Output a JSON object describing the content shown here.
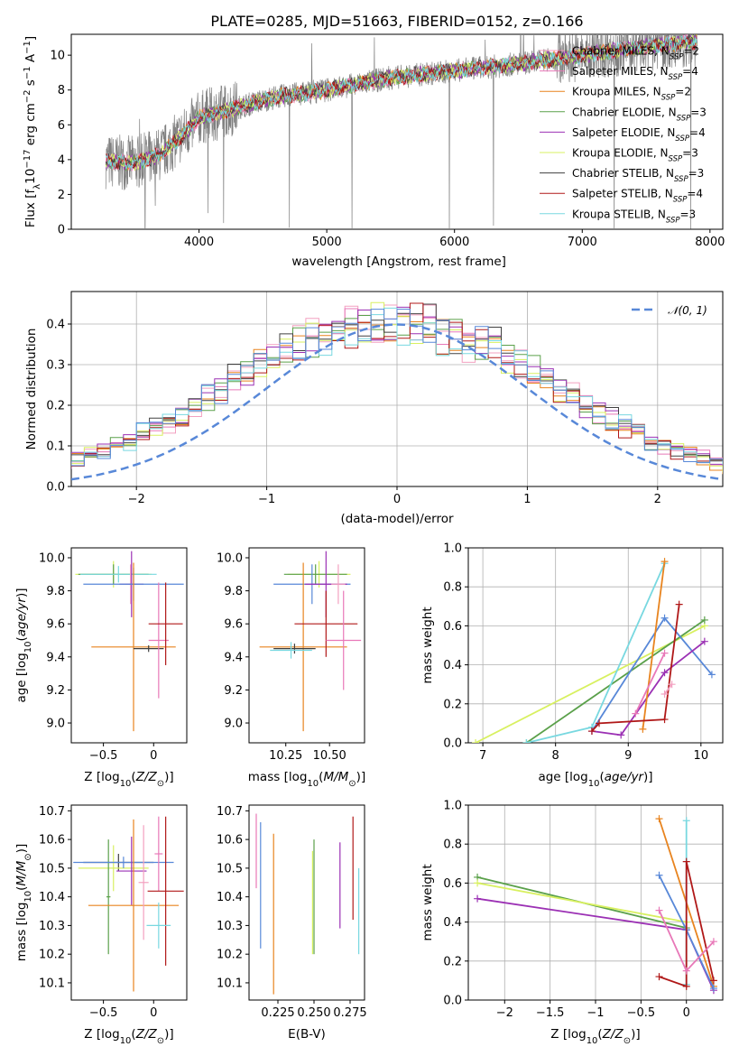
{
  "title": "PLATE=0285, MJD=51663, FIBERID=0152, z=0.166",
  "colors": {
    "Chabrier MILES": "#f3a0c0",
    "Salpeter MILES": "#e878b8",
    "Kroupa MILES": "#e8841f",
    "Chabrier ELODIE": "#5aa04a",
    "Salpeter ELODIE": "#9b30b4",
    "Kroupa ELODIE": "#d8f060",
    "Chabrier STELIB": "#404040",
    "Salpeter STELIB": "#b01818",
    "Kroupa STELIB": "#78d8e0",
    "data": "#808080",
    "extra": "#5888d8",
    "gauss": "#5888d8"
  },
  "models": [
    "Chabrier MILES",
    "Salpeter MILES",
    "Kroupa MILES",
    "Chabrier ELODIE",
    "Salpeter ELODIE",
    "Kroupa ELODIE",
    "Chabrier STELIB",
    "Salpeter STELIB",
    "Kroupa STELIB"
  ],
  "chart_data": [
    {
      "type": "line",
      "title": "PLATE=0285, MJD=51663, FIBERID=0152, z=0.166",
      "xlabel": "wavelength [Angstrom, rest frame]",
      "ylabel": "Flux [fλ10⁻¹⁷ erg cm⁻² s⁻¹ A⁻¹]",
      "xlim": [
        3000,
        8100
      ],
      "ylim": [
        0,
        11.2
      ],
      "xticks": [
        4000,
        5000,
        6000,
        7000,
        8000
      ],
      "yticks": [
        0,
        2,
        4,
        6,
        8,
        10
      ],
      "legend_position": "top-right",
      "legend": [
        "Chabrier MILES, N_SSP=2",
        "Salpeter MILES, N_SSP=4",
        "Kroupa MILES, N_SSP=2",
        "Chabrier ELODIE, N_SSP=3",
        "Salpeter ELODIE, N_SSP=4",
        "Kroupa ELODIE, N_SSP=3",
        "Chabrier STELIB, N_SSP=3",
        "Salpeter STELIB, N_SSP=4",
        "Kroupa STELIB, N_SSP=3"
      ],
      "legend_text": [
        {
          "name": "Chabrier MILES, N",
          "sub": "SSP",
          "rest": "=2"
        },
        {
          "name": "Salpeter MILES, N",
          "sub": "SSP",
          "rest": "=4"
        },
        {
          "name": "Kroupa MILES, N",
          "sub": "SSP",
          "rest": "=2"
        },
        {
          "name": "Chabrier ELODIE, N",
          "sub": "SSP",
          "rest": "=3"
        },
        {
          "name": "Salpeter ELODIE, N",
          "sub": "SSP",
          "rest": "=4"
        },
        {
          "name": "Kroupa ELODIE, N",
          "sub": "SSP",
          "rest": "=3"
        },
        {
          "name": "Chabrier STELIB, N",
          "sub": "SSP",
          "rest": "=3"
        },
        {
          "name": "Salpeter STELIB, N",
          "sub": "SSP",
          "rest": "=4"
        },
        {
          "name": "Kroupa STELIB, N",
          "sub": "SSP",
          "rest": "=3"
        }
      ],
      "continuum": {
        "x": [
          3270,
          3500,
          3700,
          3900,
          4000,
          4300,
          4600,
          5000,
          5500,
          6000,
          6500,
          7000,
          7500,
          7900
        ],
        "y": [
          3.9,
          3.8,
          4.3,
          5.6,
          6.4,
          7.0,
          7.6,
          8.0,
          8.7,
          9.1,
          9.5,
          10.0,
          10.5,
          10.8
        ]
      }
    },
    {
      "type": "histogram",
      "xlabel": "(data-model)/error",
      "ylabel": "Normed distribution",
      "xlim": [
        -2.5,
        2.5
      ],
      "ylim": [
        0,
        0.48
      ],
      "xticks": [
        -2,
        -1,
        0,
        1,
        2
      ],
      "yticks": [
        0.0,
        0.1,
        0.2,
        0.3,
        0.4
      ],
      "bin_width": 0.1,
      "legend_position": "top-right",
      "legend_label": "𝒩(0, 1)",
      "gaussian": {
        "mean": 0,
        "sigma": 1
      },
      "envelope": [
        0.03,
        0.035,
        0.04,
        0.045,
        0.05,
        0.06,
        0.07,
        0.08,
        0.09,
        0.1,
        0.11,
        0.13,
        0.15,
        0.16,
        0.18,
        0.2,
        0.22,
        0.24,
        0.26,
        0.28,
        0.3,
        0.32,
        0.34,
        0.35,
        0.36,
        0.37,
        0.38,
        0.39,
        0.39,
        0.4,
        0.4,
        0.4,
        0.39,
        0.39,
        0.38,
        0.37,
        0.36,
        0.35,
        0.34,
        0.32,
        0.3,
        0.28,
        0.26,
        0.24,
        0.22,
        0.2,
        0.18,
        0.16,
        0.15,
        0.13,
        0.11,
        0.1,
        0.09,
        0.08,
        0.07,
        0.06,
        0.05,
        0.045,
        0.04,
        0.035,
        0.03,
        0.025,
        0.02
      ]
    },
    {
      "type": "errorbar",
      "xlabel": "Z [log10(Z/Z⊙)]",
      "ylabel": "age  [log10(age/yr)]",
      "xlim": [
        -0.82,
        0.33
      ],
      "ylim": [
        8.88,
        10.06
      ],
      "xticks": [
        -0.5,
        0.0
      ],
      "yticks": [
        9.0,
        9.2,
        9.4,
        9.6,
        9.8,
        10.0
      ],
      "points": [
        {
          "model": "Kroupa ELODIE",
          "x": -0.4,
          "xerr": 0.38,
          "y": 9.9,
          "yerr": 0.08
        },
        {
          "model": "Chabrier ELODIE",
          "x": -0.4,
          "xerr": 0.35,
          "y": 9.9,
          "yerr": 0.06
        },
        {
          "model": "Kroupa STELIB",
          "x": -0.35,
          "xerr": 0.38,
          "y": 9.9,
          "yerr": 0.05
        },
        {
          "model": "Chabrier MILES",
          "x": -0.23,
          "xerr": 0.05,
          "y": 9.84,
          "yerr": 0.12
        },
        {
          "model": "Salpeter ELODIE",
          "x": -0.22,
          "xerr": 0.12,
          "y": 9.84,
          "yerr": 0.2
        },
        {
          "model": "extra",
          "x": -0.2,
          "xerr": 0.5,
          "y": 9.84,
          "yerr": 0.1
        },
        {
          "model": "Kroupa MILES",
          "x": -0.2,
          "xerr": 0.42,
          "y": 9.46,
          "yerr": 0.51
        },
        {
          "model": "Chabrier STELIB",
          "x": -0.05,
          "xerr": 0.15,
          "y": 9.45,
          "yerr": 0.02
        },
        {
          "model": "Salpeter MILES",
          "x": 0.05,
          "xerr": 0.1,
          "y": 9.5,
          "yerr": 0.35
        },
        {
          "model": "Salpeter STELIB",
          "x": 0.12,
          "xerr": 0.17,
          "y": 9.6,
          "yerr": 0.25
        }
      ]
    },
    {
      "type": "errorbar",
      "xlabel": "mass [log10(M/M⊙)]",
      "ylabel": "",
      "xlim": [
        10.04,
        10.7
      ],
      "ylim": [
        8.88,
        10.06
      ],
      "xticks": [
        10.25,
        10.5
      ],
      "yticks": [
        9.0,
        9.2,
        9.4,
        9.6,
        9.8,
        10.0
      ],
      "points": [
        {
          "model": "Kroupa ELODIE",
          "x": 10.44,
          "xerr": 0.18,
          "y": 9.9,
          "yerr": 0.08
        },
        {
          "model": "Chabrier ELODIE",
          "x": 10.42,
          "xerr": 0.18,
          "y": 9.9,
          "yerr": 0.06
        },
        {
          "model": "extra",
          "x": 10.4,
          "xerr": 0.22,
          "y": 9.84,
          "yerr": 0.12
        },
        {
          "model": "Salpeter ELODIE",
          "x": 10.48,
          "xerr": 0.12,
          "y": 9.84,
          "yerr": 0.2
        },
        {
          "model": "Kroupa MILES",
          "x": 10.35,
          "xerr": 0.25,
          "y": 9.46,
          "yerr": 0.51
        },
        {
          "model": "Chabrier STELIB",
          "x": 10.3,
          "xerr": 0.12,
          "y": 9.45,
          "yerr": 0.03
        },
        {
          "model": "Kroupa STELIB",
          "x": 10.28,
          "xerr": 0.12,
          "y": 9.44,
          "yerr": 0.05
        },
        {
          "model": "Salpeter STELIB",
          "x": 10.48,
          "xerr": 0.18,
          "y": 9.6,
          "yerr": 0.2
        },
        {
          "model": "Salpeter MILES",
          "x": 10.58,
          "xerr": 0.1,
          "y": 9.5,
          "yerr": 0.3
        },
        {
          "model": "Chabrier MILES",
          "x": 10.55,
          "xerr": 0.04,
          "y": 9.84,
          "yerr": 0.12
        }
      ]
    },
    {
      "type": "line",
      "xlabel": "age  [log10(age/yr)]",
      "ylabel": "mass weight",
      "xlim": [
        6.8,
        10.3
      ],
      "ylim": [
        0,
        1.0
      ],
      "xticks": [
        7,
        8,
        9,
        10
      ],
      "yticks": [
        0.0,
        0.2,
        0.4,
        0.6,
        0.8,
        1.0
      ],
      "series": [
        {
          "model": "Kroupa ELODIE",
          "x": [
            6.9,
            10.05
          ],
          "y": [
            0.0,
            0.6
          ]
        },
        {
          "model": "Chabrier ELODIE",
          "x": [
            7.6,
            10.05
          ],
          "y": [
            0.0,
            0.63
          ]
        },
        {
          "model": "Kroupa STELIB",
          "x": [
            7.6,
            8.5,
            9.5
          ],
          "y": [
            0.0,
            0.08,
            0.92
          ]
        },
        {
          "model": "extra",
          "x": [
            8.5,
            9.5,
            10.15
          ],
          "y": [
            0.06,
            0.64,
            0.35
          ]
        },
        {
          "model": "Salpeter ELODIE",
          "x": [
            8.5,
            8.9,
            9.5,
            10.05
          ],
          "y": [
            0.06,
            0.04,
            0.36,
            0.52
          ]
        },
        {
          "model": "Kroupa MILES",
          "x": [
            9.2,
            9.5
          ],
          "y": [
            0.07,
            0.93
          ]
        },
        {
          "model": "Salpeter STELIB",
          "x": [
            8.5,
            8.6,
            9.5,
            9.7
          ],
          "y": [
            0.06,
            0.1,
            0.12,
            0.71
          ]
        },
        {
          "model": "Salpeter MILES",
          "x": [
            9.1,
            9.5
          ],
          "y": [
            0.15,
            0.46
          ]
        },
        {
          "model": "Chabrier MILES",
          "x": [
            9.5,
            9.6
          ],
          "y": [
            0.25,
            0.3
          ]
        }
      ]
    },
    {
      "type": "errorbar",
      "xlabel": "Z [log10(Z/Z⊙)]",
      "ylabel": "mass [log10(M/M⊙)]",
      "xlim": [
        -0.82,
        0.33
      ],
      "ylim": [
        10.04,
        10.72
      ],
      "xticks": [
        -0.5,
        0.0
      ],
      "yticks": [
        10.1,
        10.2,
        10.3,
        10.4,
        10.5,
        10.6,
        10.7
      ],
      "points": [
        {
          "model": "Chabrier STELIB",
          "x": -0.35,
          "xerr": 0.35,
          "y": 10.52,
          "yerr": 0.03
        },
        {
          "model": "Kroupa ELODIE",
          "x": -0.4,
          "xerr": 0.35,
          "y": 10.5,
          "yerr": 0.08
        },
        {
          "model": "Chabrier ELODIE",
          "x": -0.45,
          "xerr": 0.02,
          "y": 10.4,
          "yerr": 0.2
        },
        {
          "model": "extra",
          "x": -0.3,
          "xerr": 0.5,
          "y": 10.52,
          "yerr": 0.02
        },
        {
          "model": "Salpeter ELODIE",
          "x": -0.22,
          "xerr": 0.15,
          "y": 10.49,
          "yerr": 0.12
        },
        {
          "model": "Kroupa MILES",
          "x": -0.2,
          "xerr": 0.45,
          "y": 10.37,
          "yerr": 0.3
        },
        {
          "model": "Salpeter MILES",
          "x": 0.05,
          "xerr": 0.04,
          "y": 10.55,
          "yerr": 0.13
        },
        {
          "model": "Salpeter STELIB",
          "x": 0.12,
          "xerr": 0.18,
          "y": 10.42,
          "yerr": 0.26
        },
        {
          "model": "Chabrier MILES",
          "x": -0.1,
          "xerr": 0.05,
          "y": 10.45,
          "yerr": 0.2
        },
        {
          "model": "Kroupa STELIB",
          "x": 0.05,
          "xerr": 0.12,
          "y": 10.3,
          "yerr": 0.08
        }
      ]
    },
    {
      "type": "errorbar",
      "xlabel": "E(B-V)",
      "ylabel": "",
      "xlim": [
        0.205,
        0.285
      ],
      "ylim": [
        10.04,
        10.72
      ],
      "xticks": [
        0.225,
        0.25,
        0.275
      ],
      "yticks": [
        10.1,
        10.2,
        10.3,
        10.4,
        10.5,
        10.6,
        10.7
      ],
      "points": [
        {
          "model": "Salpeter MILES",
          "x": 0.21,
          "xerr": 0,
          "y": 10.56,
          "yerr": 0.13
        },
        {
          "model": "extra",
          "x": 0.213,
          "xerr": 0,
          "y": 10.44,
          "yerr": 0.22
        },
        {
          "model": "Kroupa MILES",
          "x": 0.222,
          "xerr": 0,
          "y": 10.34,
          "yerr": 0.28
        },
        {
          "model": "Chabrier ELODIE",
          "x": 0.25,
          "xerr": 0,
          "y": 10.4,
          "yerr": 0.2
        },
        {
          "model": "Kroupa ELODIE",
          "x": 0.249,
          "xerr": 0,
          "y": 10.38,
          "yerr": 0.18
        },
        {
          "model": "Salpeter ELODIE",
          "x": 0.268,
          "xerr": 0,
          "y": 10.44,
          "yerr": 0.15
        },
        {
          "model": "Salpeter STELIB",
          "x": 0.277,
          "xerr": 0,
          "y": 10.5,
          "yerr": 0.18
        },
        {
          "model": "Kroupa STELIB",
          "x": 0.281,
          "xerr": 0,
          "y": 10.35,
          "yerr": 0.15
        }
      ]
    },
    {
      "type": "line",
      "xlabel": "Z [log10(Z/Z⊙)]",
      "ylabel": "mass weight",
      "xlim": [
        -2.4,
        0.4
      ],
      "ylim": [
        0,
        1.0
      ],
      "xticks": [
        -2.0,
        -1.5,
        -1.0,
        -0.5,
        0.0
      ],
      "yticks": [
        0.0,
        0.2,
        0.4,
        0.6,
        0.8,
        1.0
      ],
      "series": [
        {
          "model": "Chabrier ELODIE",
          "x": [
            -2.3,
            0.0
          ],
          "y": [
            0.63,
            0.37
          ]
        },
        {
          "model": "Kroupa ELODIE",
          "x": [
            -2.3,
            0.0
          ],
          "y": [
            0.6,
            0.4
          ]
        },
        {
          "model": "Salpeter ELODIE",
          "x": [
            -2.3,
            0.0,
            0.3
          ],
          "y": [
            0.52,
            0.36,
            0.05
          ]
        },
        {
          "model": "Kroupa MILES",
          "x": [
            -0.3,
            0.3
          ],
          "y": [
            0.93,
            0.07
          ]
        },
        {
          "model": "extra",
          "x": [
            -0.3,
            0.0,
            0.3
          ],
          "y": [
            0.64,
            0.36,
            0.06
          ]
        },
        {
          "model": "Kroupa STELIB",
          "x": [
            0.0,
            0.0
          ],
          "y": [
            0.92,
            0.08
          ]
        },
        {
          "model": "Salpeter STELIB",
          "x": [
            -0.3,
            0.0,
            0.0,
            0.3
          ],
          "y": [
            0.12,
            0.07,
            0.71,
            0.1
          ]
        },
        {
          "model": "Salpeter MILES",
          "x": [
            -0.3,
            0.0,
            0.3
          ],
          "y": [
            0.46,
            0.15,
            0.3
          ]
        }
      ]
    }
  ]
}
